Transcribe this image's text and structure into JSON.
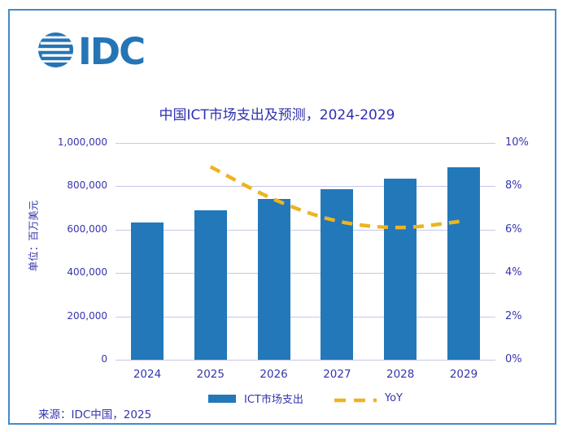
{
  "logo": {
    "text": "IDC",
    "color": "#2575b6",
    "globe_icon": "striped-globe-icon"
  },
  "title": "中国ICT市场支出及预测，2024-2029",
  "y_axis_title": "单位：百万美元",
  "source": "来源：IDC中国，2025",
  "legend": [
    {
      "label": "ICT市场支出",
      "type": "bar",
      "color": "#2278b8"
    },
    {
      "label": "YoY",
      "type": "dashed-line",
      "color": "#edb421"
    }
  ],
  "colors": {
    "bar": "#2278b8",
    "yoy_line": "#edb421",
    "title_text": "#2f2fb2",
    "axis_text": "#3535ae",
    "gridline": "#c7c7ea",
    "frame_border": "#3f8ccc",
    "logo_blue": "#2575b6"
  },
  "chart_data": {
    "type": "bar",
    "title": "中国ICT市场支出及预测，2024-2029",
    "categories": [
      "2024",
      "2025",
      "2026",
      "2027",
      "2028",
      "2029"
    ],
    "series": [
      {
        "name": "ICT市场支出",
        "type": "bar",
        "axis": "left",
        "color": "#2278b8",
        "values": [
          633000,
          689000,
          741000,
          786000,
          836000,
          888000
        ]
      },
      {
        "name": "YoY",
        "type": "dashed-line",
        "axis": "right",
        "color": "#edb421",
        "values": [
          null,
          8.9,
          7.4,
          6.4,
          6.1,
          6.4
        ]
      }
    ],
    "left_axis": {
      "label": "单位：百万美元",
      "min": 0,
      "max": 1000000,
      "ticks": [
        "0",
        "200,000",
        "400,000",
        "600,000",
        "800,000",
        "1,000,000"
      ]
    },
    "right_axis": {
      "min": 0,
      "max": 10,
      "ticks": [
        "0%",
        "2%",
        "4%",
        "6%",
        "8%",
        "10%"
      ]
    },
    "grid": true,
    "legend_position": "bottom",
    "source": "来源：IDC中国，2025"
  }
}
